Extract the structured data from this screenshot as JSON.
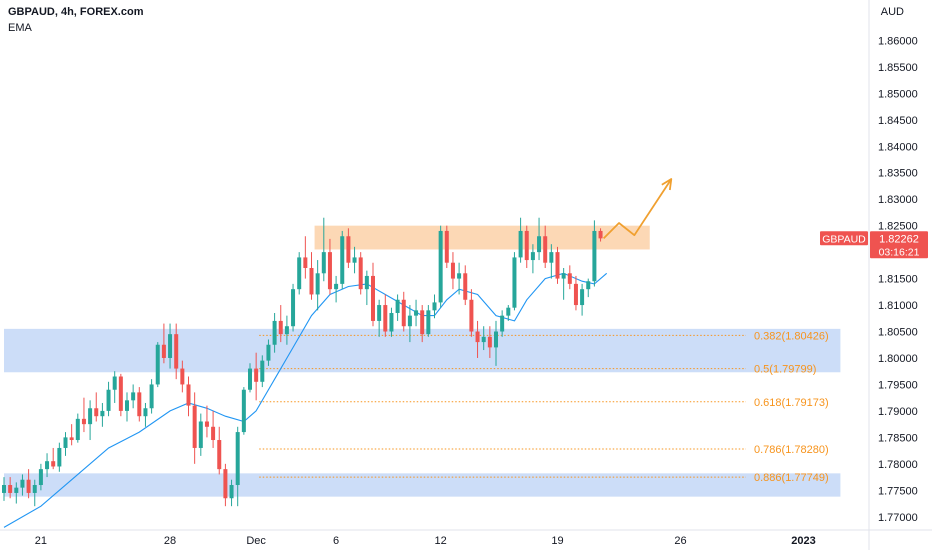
{
  "header": {
    "symbol_line": "GBPAUD, 4h, FOREX.com",
    "indicator": "EMA"
  },
  "currency_label": "AUD",
  "colors": {
    "up": "#26a69a",
    "down": "#ef5350",
    "ema": "#2196f3",
    "zone_blue": "#bbd1f5",
    "zone_orange": "#fbd1a8",
    "fib": "#f7941d",
    "price_tag": "#ef5350",
    "axis_text": "#131722"
  },
  "price_tag": {
    "symbol": "GBPAUD",
    "price": "1.82262",
    "countdown": "03:16:21"
  },
  "chart_data": {
    "type": "candlestick",
    "title": "GBPAUD, 4h, FOREX.com",
    "ylabel": "AUD",
    "ylim": [
      1.7675,
      1.8665
    ],
    "y_ticks": [
      "1.86000",
      "1.85500",
      "1.85000",
      "1.84500",
      "1.84000",
      "1.83500",
      "1.83000",
      "1.82500",
      "1.82000",
      "1.81500",
      "1.81000",
      "1.80500",
      "1.80000",
      "1.79500",
      "1.79000",
      "1.78500",
      "1.78000",
      "1.77500",
      "1.77000"
    ],
    "x_ticks": [
      "21",
      "28",
      "Dec",
      "6",
      "12",
      "19",
      "26",
      "2023"
    ],
    "x_tick_index": [
      6,
      27,
      41,
      54,
      71,
      90,
      110,
      130
    ],
    "x_range": [
      0,
      136
    ],
    "zones": [
      {
        "kind": "resistance",
        "color": "orange",
        "from_index": 50.5,
        "to_index": 105,
        "top": 1.825,
        "bottom": 1.8205
      },
      {
        "kind": "support",
        "color": "blue",
        "from_index": 0,
        "to_index": 136,
        "top": 1.8055,
        "bottom": 1.7973
      },
      {
        "kind": "support",
        "color": "blue",
        "from_index": 0,
        "to_index": 136,
        "top": 1.7782,
        "bottom": 1.7738
      }
    ],
    "fibonacci": [
      {
        "label": "0.382(1.80426)",
        "price": 1.80426
      },
      {
        "label": "0.5(1.79799)",
        "price": 1.79799
      },
      {
        "label": "0.618(1.79173)",
        "price": 1.79173
      },
      {
        "label": "0.786(1.78280)",
        "price": 1.7828
      },
      {
        "label": "0.886(1.77749)",
        "price": 1.77749
      }
    ],
    "fib_from_index": 41.5,
    "projection": [
      [
        97.5,
        1.8226
      ],
      [
        100,
        1.8255
      ],
      [
        102.5,
        1.8232
      ],
      [
        108.5,
        1.8338
      ]
    ],
    "candles": [
      [
        1.7745,
        1.7775,
        1.773,
        1.776
      ],
      [
        1.776,
        1.7775,
        1.7735,
        1.7745
      ],
      [
        1.7745,
        1.7765,
        1.7725,
        1.7755
      ],
      [
        1.7755,
        1.778,
        1.774,
        1.777
      ],
      [
        1.777,
        1.779,
        1.7735,
        1.7745
      ],
      [
        1.7745,
        1.777,
        1.772,
        1.776
      ],
      [
        1.776,
        1.78,
        1.775,
        1.779
      ],
      [
        1.779,
        1.782,
        1.7775,
        1.7805
      ],
      [
        1.7805,
        1.783,
        1.779,
        1.7795
      ],
      [
        1.7795,
        1.784,
        1.7785,
        1.783
      ],
      [
        1.783,
        1.786,
        1.7815,
        1.785
      ],
      [
        1.785,
        1.7875,
        1.7835,
        1.7845
      ],
      [
        1.7845,
        1.7895,
        1.784,
        1.7885
      ],
      [
        1.7885,
        1.7925,
        1.786,
        1.7875
      ],
      [
        1.7875,
        1.792,
        1.7845,
        1.7905
      ],
      [
        1.7905,
        1.7935,
        1.788,
        1.789
      ],
      [
        1.789,
        1.7915,
        1.787,
        1.79
      ],
      [
        1.79,
        1.7955,
        1.789,
        1.794
      ],
      [
        1.794,
        1.7975,
        1.7915,
        1.7965
      ],
      [
        1.7965,
        1.797,
        1.789,
        1.79
      ],
      [
        1.79,
        1.7935,
        1.788,
        1.792
      ],
      [
        1.792,
        1.795,
        1.7905,
        1.7935
      ],
      [
        1.7935,
        1.7945,
        1.788,
        1.789
      ],
      [
        1.789,
        1.7915,
        1.787,
        1.7905
      ],
      [
        1.7905,
        1.796,
        1.7895,
        1.795
      ],
      [
        1.795,
        1.803,
        1.7945,
        1.8025
      ],
      [
        1.8025,
        1.8065,
        1.799,
        1.8
      ],
      [
        1.8,
        1.8065,
        1.798,
        1.8045
      ],
      [
        1.8045,
        1.8065,
        1.796,
        1.798
      ],
      [
        1.798,
        1.7995,
        1.7935,
        1.795
      ],
      [
        1.795,
        1.7965,
        1.789,
        1.791
      ],
      [
        1.791,
        1.7935,
        1.78,
        1.783
      ],
      [
        1.783,
        1.7895,
        1.7815,
        1.788
      ],
      [
        1.788,
        1.791,
        1.785,
        1.787
      ],
      [
        1.787,
        1.79,
        1.783,
        1.7845
      ],
      [
        1.7845,
        1.787,
        1.778,
        1.779
      ],
      [
        1.779,
        1.78,
        1.772,
        1.7735
      ],
      [
        1.7735,
        1.777,
        1.772,
        1.776
      ],
      [
        1.776,
        1.787,
        1.772,
        1.786
      ],
      [
        1.786,
        1.7945,
        1.7855,
        1.794
      ],
      [
        1.794,
        1.799,
        1.7935,
        1.798
      ],
      [
        1.798,
        1.801,
        1.792,
        1.7955
      ],
      [
        1.7955,
        1.8005,
        1.7945,
        1.7995
      ],
      [
        1.7995,
        1.8035,
        1.7985,
        1.8025
      ],
      [
        1.8025,
        1.8085,
        1.801,
        1.807
      ],
      [
        1.807,
        1.81,
        1.803,
        1.8045
      ],
      [
        1.8045,
        1.808,
        1.8025,
        1.806
      ],
      [
        1.806,
        1.814,
        1.805,
        1.813
      ],
      [
        1.813,
        1.82,
        1.812,
        1.819
      ],
      [
        1.819,
        1.823,
        1.815,
        1.817
      ],
      [
        1.817,
        1.82,
        1.811,
        1.812
      ],
      [
        1.812,
        1.8185,
        1.809,
        1.816
      ],
      [
        1.816,
        1.8265,
        1.8145,
        1.82
      ],
      [
        1.82,
        1.8225,
        1.812,
        1.813
      ],
      [
        1.813,
        1.8155,
        1.8105,
        1.814
      ],
      [
        1.814,
        1.824,
        1.813,
        1.823
      ],
      [
        1.823,
        1.8245,
        1.817,
        1.818
      ],
      [
        1.818,
        1.821,
        1.816,
        1.819
      ],
      [
        1.819,
        1.82,
        1.812,
        1.813
      ],
      [
        1.813,
        1.8165,
        1.81,
        1.8155
      ],
      [
        1.8155,
        1.818,
        1.806,
        1.807
      ],
      [
        1.807,
        1.811,
        1.804,
        1.81
      ],
      [
        1.81,
        1.812,
        1.804,
        1.805
      ],
      [
        1.805,
        1.8095,
        1.804,
        1.8085
      ],
      [
        1.8085,
        1.812,
        1.807,
        1.811
      ],
      [
        1.811,
        1.8125,
        1.805,
        1.806
      ],
      [
        1.806,
        1.81,
        1.803,
        1.808
      ],
      [
        1.808,
        1.811,
        1.806,
        1.809
      ],
      [
        1.809,
        1.81,
        1.803,
        1.8045
      ],
      [
        1.8045,
        1.81,
        1.804,
        1.809
      ],
      [
        1.809,
        1.812,
        1.8075,
        1.8105
      ],
      [
        1.8105,
        1.825,
        1.8095,
        1.824
      ],
      [
        1.824,
        1.825,
        1.817,
        1.818
      ],
      [
        1.818,
        1.82,
        1.813,
        1.815
      ],
      [
        1.815,
        1.818,
        1.812,
        1.816
      ],
      [
        1.816,
        1.8175,
        1.81,
        1.811
      ],
      [
        1.811,
        1.813,
        1.804,
        1.805
      ],
      [
        1.805,
        1.807,
        1.8,
        1.803
      ],
      [
        1.803,
        1.806,
        1.8015,
        1.804
      ],
      [
        1.804,
        1.806,
        1.8,
        1.802
      ],
      [
        1.802,
        1.807,
        1.7985,
        1.805
      ],
      [
        1.805,
        1.809,
        1.804,
        1.808
      ],
      [
        1.808,
        1.81,
        1.807,
        1.8095
      ],
      [
        1.8095,
        1.82,
        1.809,
        1.819
      ],
      [
        1.819,
        1.8265,
        1.818,
        1.824
      ],
      [
        1.824,
        1.825,
        1.817,
        1.8185
      ],
      [
        1.8185,
        1.8215,
        1.816,
        1.82
      ],
      [
        1.82,
        1.8265,
        1.8185,
        1.823
      ],
      [
        1.823,
        1.825,
        1.817,
        1.818
      ],
      [
        1.818,
        1.8215,
        1.815,
        1.82
      ],
      [
        1.82,
        1.821,
        1.814,
        1.815
      ],
      [
        1.815,
        1.817,
        1.811,
        1.816
      ],
      [
        1.816,
        1.8175,
        1.813,
        1.814
      ],
      [
        1.814,
        1.8155,
        1.809,
        1.81
      ],
      [
        1.81,
        1.814,
        1.808,
        1.813
      ],
      [
        1.813,
        1.815,
        1.8115,
        1.8145
      ],
      [
        1.8145,
        1.826,
        1.8135,
        1.824
      ],
      [
        1.824,
        1.8245,
        1.822,
        1.8226
      ]
    ],
    "ema": [
      [
        0,
        1.768
      ],
      [
        6,
        1.772
      ],
      [
        12,
        1.778
      ],
      [
        17,
        1.783
      ],
      [
        22,
        1.786
      ],
      [
        27,
        1.79
      ],
      [
        30,
        1.7915
      ],
      [
        33,
        1.7905
      ],
      [
        36,
        1.789
      ],
      [
        39,
        1.788
      ],
      [
        41,
        1.79
      ],
      [
        44,
        1.796
      ],
      [
        47,
        1.802
      ],
      [
        50,
        1.808
      ],
      [
        53,
        1.812
      ],
      [
        56,
        1.8135
      ],
      [
        59,
        1.814
      ],
      [
        62,
        1.812
      ],
      [
        65,
        1.81
      ],
      [
        68,
        1.808
      ],
      [
        70,
        1.808
      ],
      [
        72,
        1.811
      ],
      [
        74,
        1.813
      ],
      [
        77,
        1.812
      ],
      [
        80,
        1.808
      ],
      [
        83,
        1.807
      ],
      [
        85,
        1.811
      ],
      [
        88,
        1.815
      ],
      [
        91,
        1.816
      ],
      [
        94,
        1.8145
      ],
      [
        96,
        1.814
      ],
      [
        98,
        1.816
      ]
    ]
  }
}
